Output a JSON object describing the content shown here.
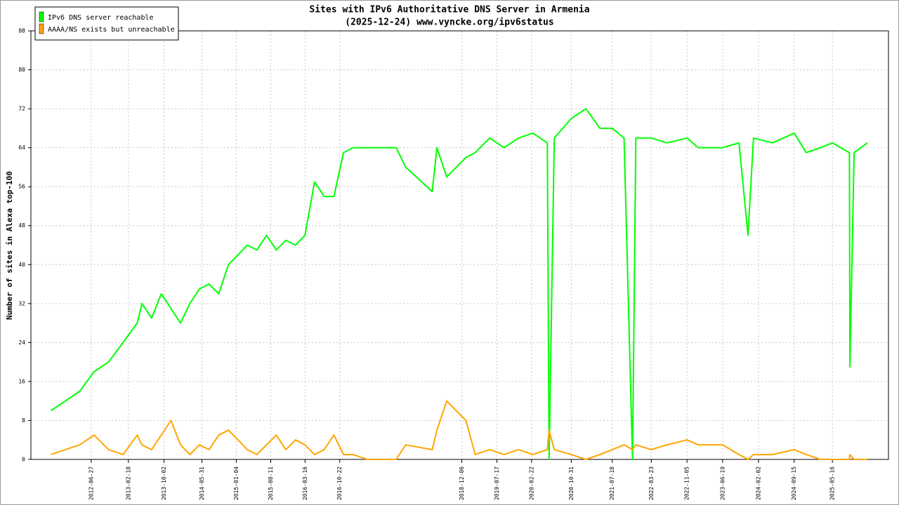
{
  "chart_data": {
    "type": "line",
    "title": "Sites with IPv6 Authoritative DNS Server in Armenia",
    "subtitle": "(2025-12-24) www.vyncke.org/ipv6status",
    "y_label": "Number of sites in Alexa top-100",
    "x": [
      "2011-10-15",
      "2012-01-15",
      "2012-04-15",
      "2012-07-15",
      "2012-10-15",
      "2013-01-15",
      "2013-04-15",
      "2013-05-15",
      "2013-07-15",
      "2013-09-15",
      "2013-11-15",
      "2014-01-15",
      "2014-03-15",
      "2014-05-15",
      "2014-07-15",
      "2014-09-15",
      "2014-11-15",
      "2015-01-15",
      "2015-03-15",
      "2015-05-15",
      "2015-07-15",
      "2015-09-15",
      "2015-11-15",
      "2016-01-15",
      "2016-03-15",
      "2016-05-15",
      "2016-07-15",
      "2016-09-15",
      "2016-11-15",
      "2017-01-15",
      "2017-04-15",
      "2017-07-15",
      "2017-10-15",
      "2017-12-15",
      "2018-06-01",
      "2018-07-01",
      "2018-09-01",
      "2018-11-01",
      "2019-01-01",
      "2019-03-01",
      "2019-06-01",
      "2019-09-01",
      "2019-12-01",
      "2020-03-01",
      "2020-06-01",
      "2020-06-12",
      "2020-07-15",
      "2020-10-31",
      "2021-02-01",
      "2021-05-01",
      "2021-07-18",
      "2021-10-01",
      "2021-11-24",
      "2021-12-15",
      "2022-03-23",
      "2022-07-01",
      "2022-11-05",
      "2023-01-15",
      "2023-06-19",
      "2023-10-01",
      "2023-11-27",
      "2024-01-01",
      "2024-05-01",
      "2024-09-15",
      "2024-12-01",
      "2025-03-01",
      "2025-05-16",
      "2025-09-01",
      "2025-09-04",
      "2025-10-01",
      "2025-12-24"
    ],
    "series": [
      {
        "name": "IPv6 DNS server reachable",
        "color": "#00ff00",
        "values": [
          10,
          12,
          14,
          18,
          20,
          24,
          28,
          32,
          29,
          34,
          31,
          28,
          32,
          35,
          36,
          34,
          40,
          42,
          44,
          43,
          46,
          43,
          45,
          44,
          46,
          57,
          54,
          54,
          63,
          64,
          64,
          64,
          64,
          60,
          55,
          64,
          58,
          60,
          62,
          63,
          66,
          64,
          66,
          67,
          65,
          0,
          66,
          70,
          72,
          68,
          68,
          66,
          0,
          66,
          66,
          65,
          66,
          64,
          64,
          65,
          46,
          66,
          65,
          67,
          63,
          64,
          65,
          63,
          19,
          63,
          65
        ]
      },
      {
        "name": "AAAA/NS exists but unreachable",
        "color": "#ffa500",
        "values": [
          1,
          2,
          3,
          5,
          2,
          1,
          5,
          3,
          2,
          5,
          8,
          3,
          1,
          3,
          2,
          5,
          6,
          4,
          2,
          1,
          3,
          5,
          2,
          4,
          3,
          1,
          2,
          5,
          1,
          1,
          0,
          0,
          0,
          3,
          2,
          6,
          12,
          10,
          8,
          1,
          2,
          1,
          2,
          1,
          2,
          6,
          2,
          1,
          0,
          1,
          2,
          3,
          2,
          3,
          2,
          3,
          4,
          3,
          3,
          1,
          0,
          1,
          1,
          2,
          1,
          0,
          0,
          0,
          1,
          0,
          0
        ]
      }
    ],
    "xlim": [
      "2011-06-10",
      "2026-05-07"
    ],
    "xticks": [
      "2012-06-27",
      "2013-02-18",
      "2013-10-02",
      "2014-05-31",
      "2015-01-04",
      "2015-08-11",
      "2016-03-16",
      "2016-10-22",
      "2018-12-06",
      "2019-07-17",
      "2020-02-22",
      "2020-10-31",
      "2021-07-18",
      "2022-03-23",
      "2022-11-05",
      "2023-06-19",
      "2024-02-02",
      "2024-09-15",
      "2025-05-16"
    ],
    "ylim": [
      0,
      88
    ],
    "yticks": [
      0,
      8,
      16,
      24,
      32,
      40,
      48,
      56,
      64,
      72,
      80,
      88
    ],
    "grid": true,
    "legend": "upper-left"
  }
}
